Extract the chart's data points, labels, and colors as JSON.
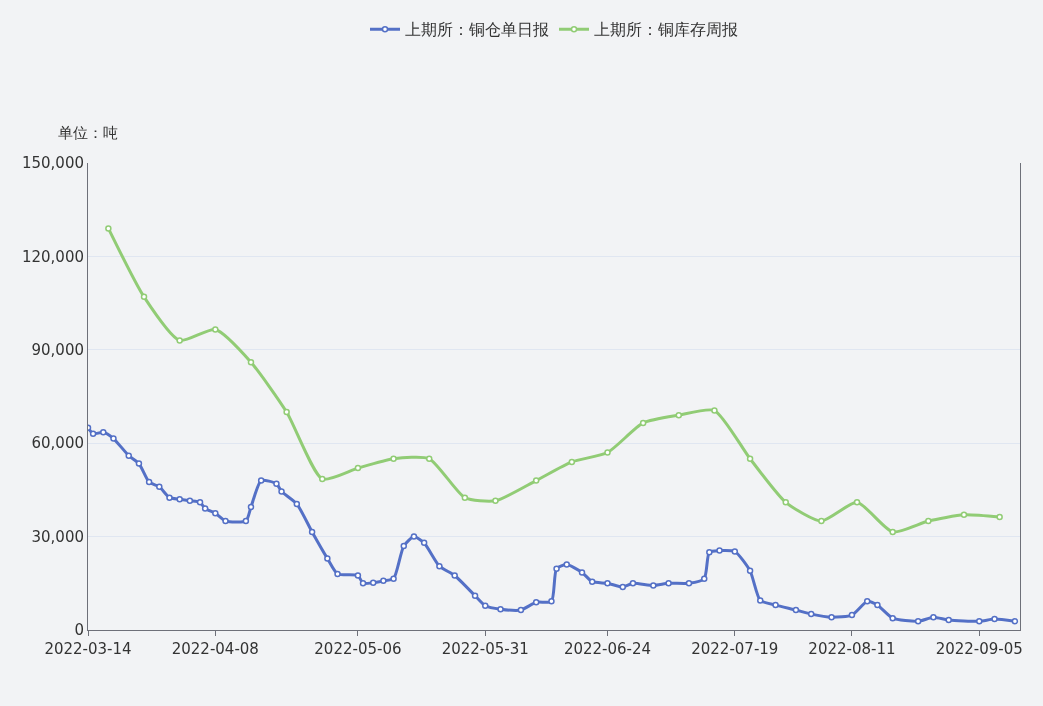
{
  "chart_data": {
    "type": "line",
    "ylabel": "单位：吨",
    "legend": "top",
    "grid": "y",
    "marker": "circle",
    "line_style": "solid",
    "xlim": [
      "2022-03-14",
      "2022-09-13"
    ],
    "xticks": [
      {
        "value": "2022-03-14",
        "label": "2022-03-14"
      },
      {
        "value": "2022-04-08",
        "label": "2022-04-08"
      },
      {
        "value": "2022-05-06",
        "label": "2022-05-06"
      },
      {
        "value": "2022-05-31",
        "label": "2022-05-31"
      },
      {
        "value": "2022-06-24",
        "label": "2022-06-24"
      },
      {
        "value": "2022-07-19",
        "label": "2022-07-19"
      },
      {
        "value": "2022-08-11",
        "label": "2022-08-11"
      },
      {
        "value": "2022-09-05",
        "label": "2022-09-05"
      }
    ],
    "ylim": [
      0,
      150000
    ],
    "yticks": [
      {
        "value": 0,
        "label": "0"
      },
      {
        "value": 30000,
        "label": "30,000"
      },
      {
        "value": 60000,
        "label": "60,000"
      },
      {
        "value": 90000,
        "label": "90,000"
      },
      {
        "value": 120000,
        "label": "120,000"
      },
      {
        "value": 150000,
        "label": "150,000"
      }
    ],
    "series": [
      {
        "name": "上期所：铜仓单日报",
        "color": "#5470c6",
        "x": [
          "2022-03-14",
          "2022-03-15",
          "2022-03-17",
          "2022-03-19",
          "2022-03-22",
          "2022-03-24",
          "2022-03-26",
          "2022-03-28",
          "2022-03-30",
          "2022-04-01",
          "2022-04-03",
          "2022-04-05",
          "2022-04-06",
          "2022-04-08",
          "2022-04-10",
          "2022-04-14",
          "2022-04-15",
          "2022-04-17",
          "2022-04-20",
          "2022-04-21",
          "2022-04-24",
          "2022-04-27",
          "2022-04-30",
          "2022-05-02",
          "2022-05-06",
          "2022-05-07",
          "2022-05-09",
          "2022-05-11",
          "2022-05-13",
          "2022-05-15",
          "2022-05-17",
          "2022-05-19",
          "2022-05-22",
          "2022-05-25",
          "2022-05-29",
          "2022-05-31",
          "2022-06-03",
          "2022-06-07",
          "2022-06-10",
          "2022-06-13",
          "2022-06-14",
          "2022-06-16",
          "2022-06-19",
          "2022-06-21",
          "2022-06-24",
          "2022-06-27",
          "2022-06-29",
          "2022-07-03",
          "2022-07-06",
          "2022-07-10",
          "2022-07-13",
          "2022-07-14",
          "2022-07-16",
          "2022-07-19",
          "2022-07-22",
          "2022-07-24",
          "2022-07-27",
          "2022-07-31",
          "2022-08-03",
          "2022-08-07",
          "2022-08-11",
          "2022-08-14",
          "2022-08-16",
          "2022-08-19",
          "2022-08-24",
          "2022-08-27",
          "2022-08-30",
          "2022-09-05",
          "2022-09-08",
          "2022-09-12"
        ],
        "values": [
          65000,
          63000,
          63500,
          61500,
          56000,
          53500,
          47500,
          46000,
          42500,
          42000,
          41500,
          41000,
          39000,
          37500,
          35000,
          35000,
          39500,
          48000,
          47000,
          44500,
          40500,
          31500,
          23000,
          18000,
          17500,
          15000,
          15200,
          15800,
          16500,
          27000,
          30000,
          28000,
          20500,
          17500,
          11000,
          7800,
          6700,
          6400,
          8900,
          9200,
          19700,
          21000,
          18500,
          15500,
          15000,
          13800,
          15000,
          14300,
          15000,
          15000,
          16500,
          25000,
          25500,
          25200,
          19000,
          9500,
          8000,
          6400,
          5100,
          4100,
          4800,
          9200,
          8000,
          3800,
          2800,
          4100,
          3200,
          2800,
          3500,
          2800
        ]
      },
      {
        "name": "上期所：铜库存周报",
        "color": "#91cc75",
        "x": [
          "2022-03-18",
          "2022-03-25",
          "2022-04-01",
          "2022-04-08",
          "2022-04-15",
          "2022-04-22",
          "2022-04-29",
          "2022-05-06",
          "2022-05-13",
          "2022-05-20",
          "2022-05-27",
          "2022-06-02",
          "2022-06-10",
          "2022-06-17",
          "2022-06-24",
          "2022-07-01",
          "2022-07-08",
          "2022-07-15",
          "2022-07-22",
          "2022-07-29",
          "2022-08-05",
          "2022-08-12",
          "2022-08-19",
          "2022-08-26",
          "2022-09-02",
          "2022-09-09"
        ],
        "values": [
          129000,
          107000,
          93000,
          96500,
          86000,
          70000,
          48500,
          52000,
          55000,
          55000,
          42500,
          41500,
          48000,
          54000,
          57000,
          66500,
          69000,
          70500,
          55000,
          41000,
          35000,
          41000,
          31500,
          35000,
          37000,
          36300
        ]
      }
    ]
  }
}
